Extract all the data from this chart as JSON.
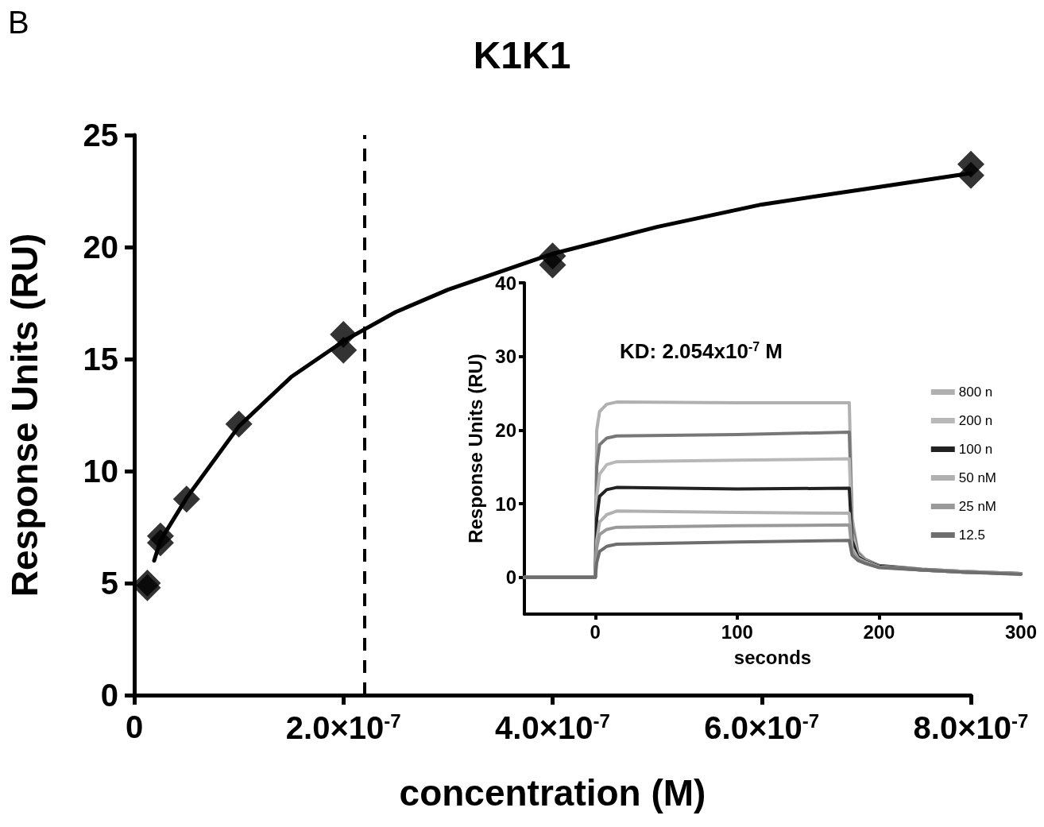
{
  "chart_data": [
    {
      "type": "scatter",
      "title": "K1K1",
      "xlabel": "concentration (M)",
      "ylabel": "Response Units (RU)",
      "annotations": [
        "B"
      ],
      "xlim": [
        0,
        8e-07
      ],
      "xticks": [
        0,
        {
          "value": 2e-07,
          "label": "2.0×10$^{-7}$"
        },
        {
          "value": 4e-07,
          "label": "4.0×10$^{-7}$"
        },
        {
          "value": 6e-07,
          "label": "6.0×10$^{-7}$"
        },
        {
          "value": 8e-07,
          "label": "8.0×10$^{-7}$"
        }
      ],
      "ylim": [
        0,
        25
      ],
      "yticks": [
        0,
        5,
        10,
        15,
        20,
        25
      ],
      "grid": false,
      "legend": false,
      "marker": "diamond",
      "ref_lines": [
        {
          "axis": "x",
          "value": 2.2e-07,
          "color": "#000000",
          "line_style": "dashed"
        }
      ],
      "series": [
        {
          "type": "scatter",
          "color": "#000000",
          "x": [
            1.25e-08,
            1.25e-08,
            2.5e-08,
            2.5e-08,
            5e-08,
            1e-07,
            2e-07,
            2e-07,
            4e-07,
            4e-07,
            8e-07,
            8e-07
          ],
          "values": [
            4.8,
            5.0,
            6.8,
            7.1,
            8.75,
            12.1,
            16.1,
            15.4,
            19.6,
            19.2,
            23.7,
            23.2
          ]
        },
        {
          "type": "line",
          "color": "#000000",
          "marker": "none",
          "line_style": "solid",
          "x": [
            1.9e-08,
            2.5e-08,
            5e-08,
            1e-07,
            1.5e-07,
            2e-07,
            2.5e-07,
            3e-07,
            4e-07,
            5e-07,
            6e-07,
            7e-07,
            8e-07
          ],
          "values": [
            6.0,
            6.9,
            8.8,
            12.0,
            14.2,
            15.8,
            17.1,
            18.1,
            19.7,
            20.9,
            21.9,
            22.6,
            23.3
          ]
        }
      ]
    },
    {
      "type": "line",
      "xlabel": "seconds",
      "ylabel": "Response Units (RU)",
      "annotations": [
        "KD: 2.054x10$^{-7}$ M"
      ],
      "xlim": [
        -50,
        300
      ],
      "xticks": [
        0,
        100,
        200,
        300
      ],
      "ylim": [
        -5,
        40
      ],
      "yticks": [
        0,
        10,
        20,
        30,
        40
      ],
      "grid": false,
      "legend": "right",
      "marker": "none",
      "line_style": "solid",
      "x": [
        -50,
        0,
        1,
        3,
        8,
        15,
        100,
        179,
        181,
        185,
        190,
        200,
        230,
        260,
        300
      ],
      "series": [
        {
          "name": "800 n",
          "color": "#b0b0b0",
          "values": [
            0,
            0,
            20,
            22.5,
            23.5,
            23.8,
            23.7,
            23.7,
            8,
            3.5,
            2.5,
            1.6,
            1.1,
            0.8,
            0.5
          ]
        },
        {
          "color": "#777777",
          "values": [
            0,
            0,
            15,
            18,
            18.9,
            19.2,
            19.4,
            19.7,
            7,
            3.3,
            2.4,
            1.6,
            1.1,
            0.8,
            0.5
          ]
        },
        {
          "name": "200 n",
          "color": "#b8b8b8",
          "values": [
            0,
            0,
            11,
            14,
            15.3,
            15.7,
            15.9,
            16.1,
            6,
            3,
            2.3,
            1.5,
            1.0,
            0.8,
            0.5
          ]
        },
        {
          "name": "100 n",
          "color": "#222222",
          "values": [
            0,
            0,
            8,
            11,
            11.9,
            12.2,
            12.0,
            12.1,
            5,
            2.8,
            2.2,
            1.5,
            1.0,
            0.7,
            0.5
          ]
        },
        {
          "name": "50 nM",
          "color": "#b0b0b0",
          "values": [
            0,
            0,
            5,
            7.5,
            8.5,
            9,
            8.8,
            8.7,
            4,
            2.6,
            2.1,
            1.4,
            1.0,
            0.7,
            0.5
          ]
        },
        {
          "name": "25 nM",
          "color": "#999999",
          "values": [
            0,
            0,
            4,
            5.8,
            6.5,
            6.8,
            7.0,
            7.1,
            3.5,
            2.5,
            2.0,
            1.4,
            1.0,
            0.7,
            0.5
          ]
        },
        {
          "name": "12.5",
          "color": "#6e6e6e",
          "values": [
            0,
            0,
            2,
            3.5,
            4.2,
            4.5,
            4.8,
            5.0,
            3,
            2.3,
            1.9,
            1.3,
            1.0,
            0.7,
            0.4
          ]
        }
      ]
    }
  ]
}
